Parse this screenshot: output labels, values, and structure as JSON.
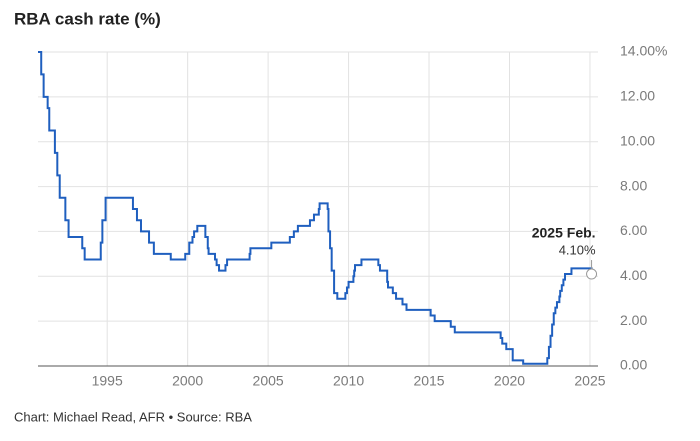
{
  "chart_data": {
    "type": "line",
    "drawstyle": "steps-post",
    "title": "RBA cash rate (%)",
    "footnote": "Chart: Michael Read, AFR • Source: RBA",
    "annotation": {
      "title": "2025 Feb.",
      "label": "4.10%"
    },
    "grid": true,
    "color": "#1f5fbf",
    "xlim": [
      1990.7,
      2025.5
    ],
    "xticks": [
      1995,
      2000,
      2005,
      2010,
      2015,
      2020,
      2025
    ],
    "ylim": [
      0,
      14
    ],
    "yticks": [
      {
        "value": 0,
        "label": "0.00"
      },
      {
        "value": 2,
        "label": "2.00"
      },
      {
        "value": 4,
        "label": "4.00"
      },
      {
        "value": 6,
        "label": "6.00"
      },
      {
        "value": 8,
        "label": "8.00"
      },
      {
        "value": 10,
        "label": "10.00"
      },
      {
        "value": 12,
        "label": "12.00"
      },
      {
        "value": 14,
        "label": "14.00%"
      }
    ],
    "series": [
      {
        "name": "Cash rate",
        "x": [
          1990.7,
          1990.9,
          1991.05,
          1991.3,
          1991.4,
          1991.75,
          1991.9,
          1992.05,
          1992.4,
          1992.6,
          1993.45,
          1993.6,
          1994.6,
          1994.7,
          1994.9,
          1996.6,
          1996.85,
          1997.1,
          1997.6,
          1997.9,
          1998.95,
          1999.85,
          2000.1,
          2000.3,
          2000.4,
          2000.6,
          2001.1,
          2001.25,
          2001.3,
          2001.7,
          2001.8,
          2001.95,
          2002.35,
          2002.45,
          2003.85,
          2003.9,
          2005.2,
          2006.35,
          2006.6,
          2006.85,
          2007.6,
          2007.85,
          2008.15,
          2008.2,
          2008.7,
          2008.75,
          2008.85,
          2008.95,
          2009.1,
          2009.3,
          2009.8,
          2009.9,
          2010.0,
          2010.3,
          2010.35,
          2010.4,
          2010.8,
          2011.85,
          2011.95,
          2012.4,
          2012.45,
          2012.75,
          2012.95,
          2013.35,
          2013.6,
          2015.1,
          2015.35,
          2016.35,
          2016.6,
          2019.45,
          2019.55,
          2019.8,
          2020.2,
          2020.85,
          2022.35,
          2022.45,
          2022.55,
          2022.65,
          2022.75,
          2022.85,
          2022.95,
          2023.1,
          2023.15,
          2023.25,
          2023.35,
          2023.45,
          2023.85,
          2025.1
        ],
        "values": [
          14,
          13,
          12,
          11.5,
          10.5,
          9.5,
          8.5,
          7.5,
          6.5,
          5.75,
          5.25,
          4.75,
          5.5,
          6.5,
          7.5,
          7,
          6.5,
          6,
          5.5,
          5,
          4.75,
          5,
          5.5,
          5.75,
          6,
          6.25,
          5.75,
          5.25,
          5,
          4.75,
          4.5,
          4.25,
          4.5,
          4.75,
          5,
          5.25,
          5.5,
          5.75,
          6,
          6.25,
          6.5,
          6.75,
          7,
          7.25,
          7,
          6,
          5.25,
          4.25,
          3.25,
          3,
          3.25,
          3.5,
          3.75,
          4,
          4.25,
          4.5,
          4.75,
          4.5,
          4.25,
          3.75,
          3.5,
          3.25,
          3,
          2.75,
          2.5,
          2.25,
          2,
          1.75,
          1.5,
          1.25,
          1,
          0.75,
          0.25,
          0.1,
          0.35,
          0.85,
          1.35,
          1.85,
          2.35,
          2.6,
          2.85,
          3.1,
          3.35,
          3.6,
          3.85,
          4.1,
          4.35,
          4.1
        ]
      }
    ]
  }
}
